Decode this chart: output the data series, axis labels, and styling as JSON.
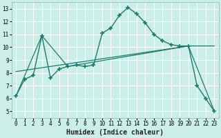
{
  "xlabel": "Humidex (Indice chaleur)",
  "bg_color": "#cceee8",
  "grid_color": "#ffffff",
  "line_color": "#1a7a6e",
  "xlim": [
    -0.5,
    23.5
  ],
  "ylim": [
    4.5,
    13.5
  ],
  "xticks": [
    0,
    1,
    2,
    3,
    4,
    5,
    6,
    7,
    8,
    9,
    10,
    11,
    12,
    13,
    14,
    15,
    16,
    17,
    18,
    19,
    20,
    21,
    22,
    23
  ],
  "yticks": [
    5,
    6,
    7,
    8,
    9,
    10,
    11,
    12,
    13
  ],
  "series1_x": [
    0,
    1,
    2,
    3,
    4,
    5,
    6,
    7,
    8,
    9,
    10,
    11,
    12,
    13,
    14,
    15,
    16,
    17,
    18,
    19,
    20,
    21,
    22,
    23
  ],
  "series1_y": [
    6.2,
    7.5,
    7.8,
    10.9,
    7.6,
    8.3,
    8.5,
    8.6,
    8.5,
    8.6,
    11.1,
    11.5,
    12.5,
    13.1,
    12.6,
    11.9,
    11.0,
    10.5,
    10.2,
    10.1,
    10.1,
    7.0,
    6.0,
    5.0
  ],
  "series2_x": [
    0,
    3,
    6,
    20,
    23
  ],
  "series2_y": [
    6.2,
    10.9,
    8.5,
    10.1,
    5.0
  ],
  "series3_x": [
    0,
    20,
    23
  ],
  "series3_y": [
    8.1,
    10.1,
    10.1
  ]
}
